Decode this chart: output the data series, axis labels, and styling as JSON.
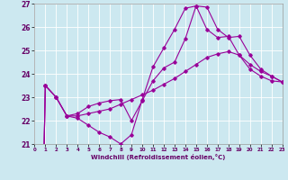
{
  "xlabel": "Windchill (Refroidissement éolien,°C)",
  "bg_color": "#cce8f0",
  "grid_color": "#ffffff",
  "line_color": "#990099",
  "xlim": [
    0,
    23
  ],
  "ylim": [
    21,
    27
  ],
  "xticks": [
    0,
    1,
    2,
    3,
    4,
    5,
    6,
    7,
    8,
    9,
    10,
    11,
    12,
    13,
    14,
    15,
    16,
    17,
    18,
    19,
    20,
    21,
    22,
    23
  ],
  "yticks": [
    21,
    22,
    23,
    24,
    25,
    26,
    27
  ],
  "curves": [
    [
      0,
      23.5,
      23.0,
      22.2,
      22.1,
      21.8,
      21.5,
      21.3,
      21.0,
      21.4,
      22.9,
      24.3,
      25.1,
      25.9,
      26.8,
      26.9,
      25.9,
      25.55,
      25.6,
      24.8,
      24.2,
      23.9,
      23.7,
      23.65
    ],
    [
      0,
      23.5,
      23.0,
      22.2,
      22.2,
      22.3,
      22.4,
      22.5,
      22.7,
      22.9,
      23.1,
      23.3,
      23.55,
      23.8,
      24.1,
      24.4,
      24.7,
      24.85,
      24.95,
      24.8,
      24.4,
      24.1,
      23.9,
      23.65
    ],
    [
      0,
      23.5,
      23.0,
      22.2,
      22.3,
      22.6,
      22.75,
      22.85,
      22.9,
      22.0,
      22.85,
      23.7,
      24.25,
      24.5,
      25.5,
      26.9,
      26.85,
      25.9,
      25.55,
      25.6,
      24.8,
      24.2,
      23.9,
      23.65
    ]
  ],
  "x_vals": [
    0,
    1,
    2,
    3,
    4,
    5,
    6,
    7,
    8,
    9,
    10,
    11,
    12,
    13,
    14,
    15,
    16,
    17,
    18,
    19,
    20,
    21,
    22,
    23
  ]
}
